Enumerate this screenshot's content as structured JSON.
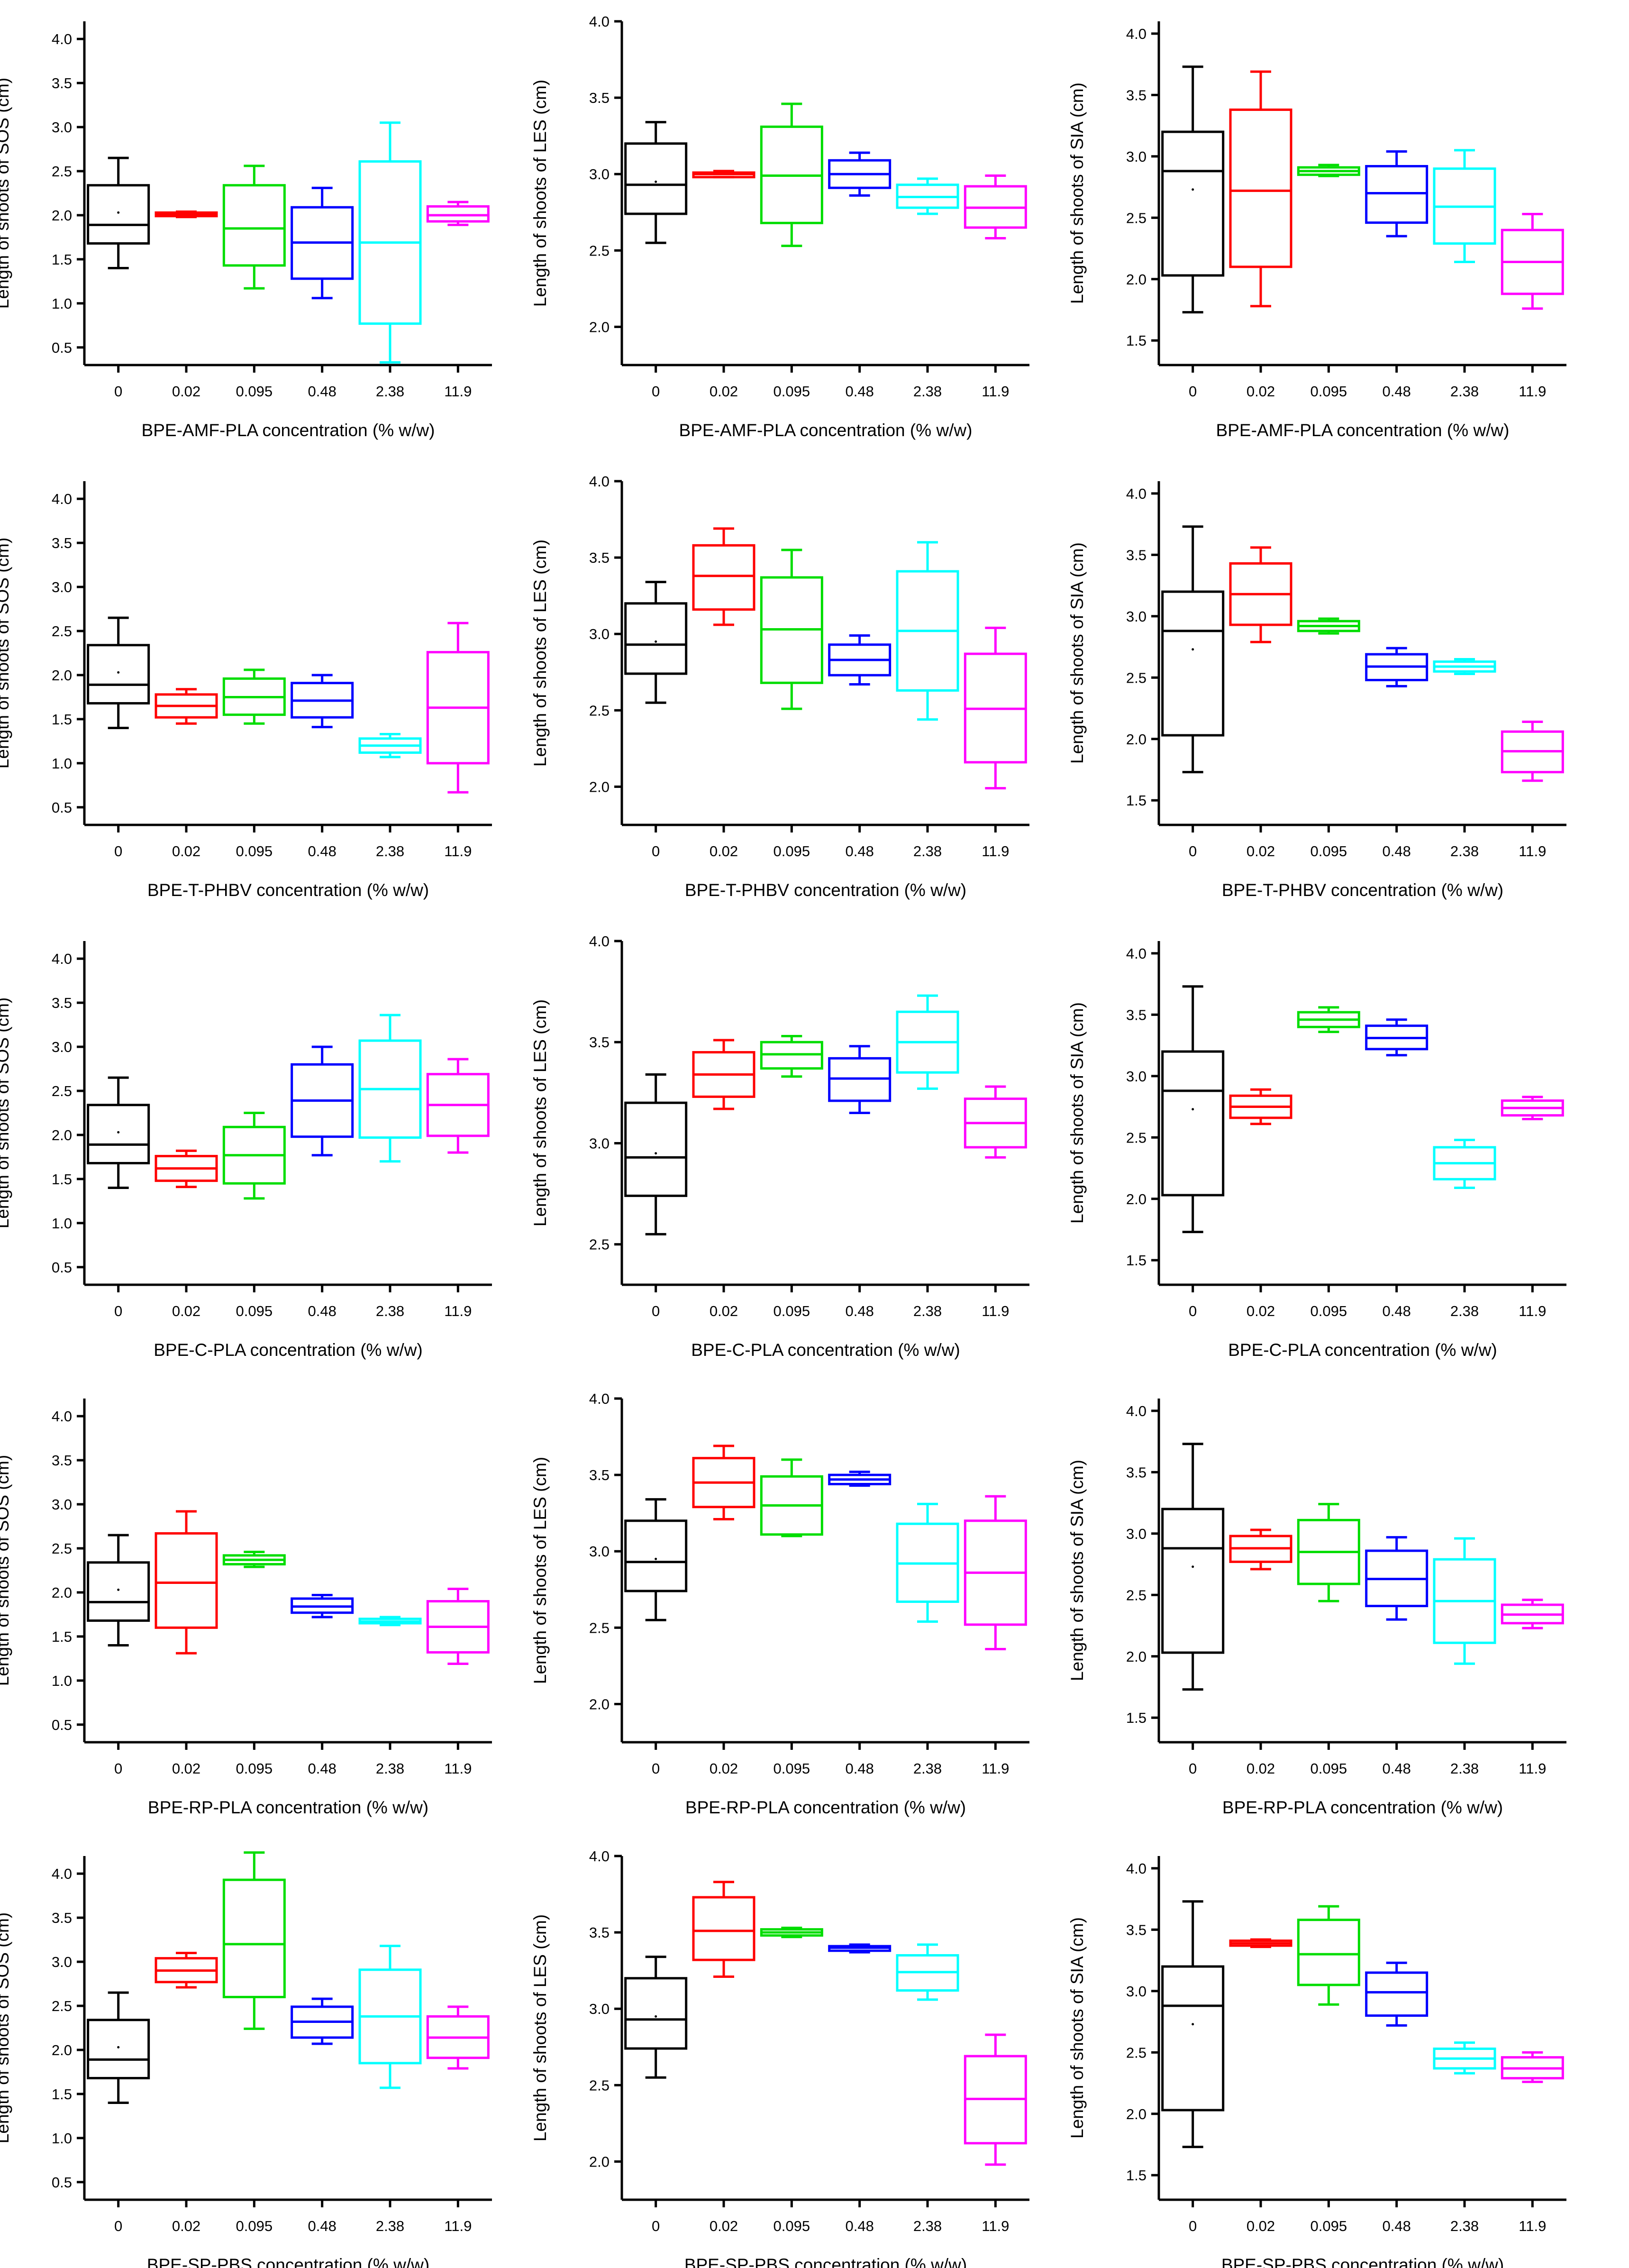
{
  "colors": {
    "axis": "#000000",
    "series": [
      "#000000",
      "#ff0000",
      "#00dd00",
      "#0000ff",
      "#00ffff",
      "#ff00ff"
    ]
  },
  "chart_data": [
    {
      "type": "box",
      "title": "",
      "xlabel": "BPE-AMF-PLA concentration (% w/w)",
      "ylabel": "Length of shoots of SOS (cm)",
      "categories": [
        "0",
        "0.02",
        "0.095",
        "0.48",
        "2.38",
        "11.9"
      ],
      "ylim": [
        0.3,
        4.2
      ],
      "yticks": [
        "0.5",
        "1.0",
        "1.5",
        "2.0",
        "2.5",
        "3.0",
        "3.5",
        "4.0"
      ],
      "boxes": [
        {
          "min": 1.4,
          "q1": 1.68,
          "median": 1.89,
          "q3": 2.34,
          "max": 2.65,
          "mean": 2.03
        },
        {
          "min": 1.98,
          "q1": 1.99,
          "median": 2.01,
          "q3": 2.03,
          "max": 2.04
        },
        {
          "min": 1.17,
          "q1": 1.43,
          "median": 1.85,
          "q3": 2.34,
          "max": 2.56
        },
        {
          "min": 1.06,
          "q1": 1.28,
          "median": 1.69,
          "q3": 2.09,
          "max": 2.31
        },
        {
          "min": 0.33,
          "q1": 0.77,
          "median": 1.69,
          "q3": 2.61,
          "max": 3.05
        },
        {
          "min": 1.89,
          "q1": 1.93,
          "median": 2.0,
          "q3": 2.1,
          "max": 2.15
        }
      ]
    },
    {
      "type": "box",
      "title": "",
      "xlabel": "BPE-AMF-PLA concentration (% w/w)",
      "ylabel": "Length of shoots of LES (cm)",
      "categories": [
        "0",
        "0.02",
        "0.095",
        "0.48",
        "2.38",
        "11.9"
      ],
      "ylim": [
        1.75,
        4.0
      ],
      "yticks": [
        "2.0",
        "2.5",
        "3.0",
        "3.5",
        "4.0"
      ],
      "boxes": [
        {
          "min": 2.55,
          "q1": 2.74,
          "median": 2.93,
          "q3": 3.2,
          "max": 3.34,
          "mean": 2.95
        },
        {
          "min": 2.98,
          "q1": 2.98,
          "median": 3.0,
          "q3": 3.01,
          "max": 3.02
        },
        {
          "min": 2.53,
          "q1": 2.68,
          "median": 2.99,
          "q3": 3.31,
          "max": 3.46
        },
        {
          "min": 2.86,
          "q1": 2.91,
          "median": 3.0,
          "q3": 3.09,
          "max": 3.14
        },
        {
          "min": 2.74,
          "q1": 2.78,
          "median": 2.85,
          "q3": 2.93,
          "max": 2.97
        },
        {
          "min": 2.58,
          "q1": 2.65,
          "median": 2.78,
          "q3": 2.92,
          "max": 2.99
        }
      ]
    },
    {
      "type": "box",
      "title": "",
      "xlabel": "BPE-AMF-PLA concentration (% w/w)",
      "ylabel": "Length of shoots of SIA (cm)",
      "categories": [
        "0",
        "0.02",
        "0.095",
        "0.48",
        "2.38",
        "11.9"
      ],
      "ylim": [
        1.3,
        4.1
      ],
      "yticks": [
        "1.5",
        "2.0",
        "2.5",
        "3.0",
        "3.5",
        "4.0"
      ],
      "boxes": [
        {
          "min": 1.73,
          "q1": 2.03,
          "median": 2.88,
          "q3": 3.2,
          "max": 3.73,
          "mean": 2.73
        },
        {
          "min": 1.78,
          "q1": 2.1,
          "median": 2.72,
          "q3": 3.38,
          "max": 3.69
        },
        {
          "min": 2.84,
          "q1": 2.85,
          "median": 2.88,
          "q3": 2.91,
          "max": 2.93
        },
        {
          "min": 2.35,
          "q1": 2.46,
          "median": 2.7,
          "q3": 2.92,
          "max": 3.04
        },
        {
          "min": 2.14,
          "q1": 2.29,
          "median": 2.59,
          "q3": 2.9,
          "max": 3.05
        },
        {
          "min": 1.76,
          "q1": 1.88,
          "median": 2.14,
          "q3": 2.4,
          "max": 2.53
        }
      ]
    },
    {
      "type": "box",
      "title": "",
      "xlabel": "BPE-T-PHBV concentration (% w/w)",
      "ylabel": "Length of shoots of SOS (cm)",
      "categories": [
        "0",
        "0.02",
        "0.095",
        "0.48",
        "2.38",
        "11.9"
      ],
      "ylim": [
        0.3,
        4.2
      ],
      "yticks": [
        "0.5",
        "1.0",
        "1.5",
        "2.0",
        "2.5",
        "3.0",
        "3.5",
        "4.0"
      ],
      "boxes": [
        {
          "min": 1.4,
          "q1": 1.68,
          "median": 1.89,
          "q3": 2.34,
          "max": 2.65,
          "mean": 2.03
        },
        {
          "min": 1.45,
          "q1": 1.52,
          "median": 1.65,
          "q3": 1.78,
          "max": 1.84
        },
        {
          "min": 1.45,
          "q1": 1.55,
          "median": 1.75,
          "q3": 1.96,
          "max": 2.06
        },
        {
          "min": 1.41,
          "q1": 1.52,
          "median": 1.71,
          "q3": 1.91,
          "max": 2.0
        },
        {
          "min": 1.07,
          "q1": 1.12,
          "median": 1.2,
          "q3": 1.28,
          "max": 1.33
        },
        {
          "min": 0.67,
          "q1": 1.0,
          "median": 1.63,
          "q3": 2.26,
          "max": 2.59
        }
      ]
    },
    {
      "type": "box",
      "title": "",
      "xlabel": "BPE-T-PHBV concentration (% w/w)",
      "ylabel": "Length of shoots of LES (cm)",
      "categories": [
        "0",
        "0.02",
        "0.095",
        "0.48",
        "2.38",
        "11.9"
      ],
      "ylim": [
        1.75,
        4.0
      ],
      "yticks": [
        "2.0",
        "2.5",
        "3.0",
        "3.5",
        "4.0"
      ],
      "boxes": [
        {
          "min": 2.55,
          "q1": 2.74,
          "median": 2.93,
          "q3": 3.2,
          "max": 3.34,
          "mean": 2.95
        },
        {
          "min": 3.06,
          "q1": 3.16,
          "median": 3.38,
          "q3": 3.58,
          "max": 3.69
        },
        {
          "min": 2.51,
          "q1": 2.68,
          "median": 3.03,
          "q3": 3.37,
          "max": 3.55
        },
        {
          "min": 2.67,
          "q1": 2.73,
          "median": 2.83,
          "q3": 2.93,
          "max": 2.99
        },
        {
          "min": 2.44,
          "q1": 2.63,
          "median": 3.02,
          "q3": 3.41,
          "max": 3.6
        },
        {
          "min": 1.99,
          "q1": 2.16,
          "median": 2.51,
          "q3": 2.87,
          "max": 3.04
        }
      ]
    },
    {
      "type": "box",
      "title": "",
      "xlabel": "BPE-T-PHBV concentration (% w/w)",
      "ylabel": "Length of shoots of SIA (cm)",
      "categories": [
        "0",
        "0.02",
        "0.095",
        "0.48",
        "2.38",
        "11.9"
      ],
      "ylim": [
        1.3,
        4.1
      ],
      "yticks": [
        "1.5",
        "2.0",
        "2.5",
        "3.0",
        "3.5",
        "4.0"
      ],
      "boxes": [
        {
          "min": 1.73,
          "q1": 2.03,
          "median": 2.88,
          "q3": 3.2,
          "max": 3.73,
          "mean": 2.73
        },
        {
          "min": 2.79,
          "q1": 2.93,
          "median": 3.18,
          "q3": 3.43,
          "max": 3.56
        },
        {
          "min": 2.86,
          "q1": 2.88,
          "median": 2.92,
          "q3": 2.96,
          "max": 2.98
        },
        {
          "min": 2.43,
          "q1": 2.48,
          "median": 2.59,
          "q3": 2.69,
          "max": 2.74
        },
        {
          "min": 2.53,
          "q1": 2.55,
          "median": 2.59,
          "q3": 2.63,
          "max": 2.65
        },
        {
          "min": 1.66,
          "q1": 1.73,
          "median": 1.9,
          "q3": 2.06,
          "max": 2.14
        }
      ]
    },
    {
      "type": "box",
      "title": "",
      "xlabel": "BPE-C-PLA concentration (% w/w)",
      "ylabel": "Length of shoots of SOS (cm)",
      "categories": [
        "0",
        "0.02",
        "0.095",
        "0.48",
        "2.38",
        "11.9"
      ],
      "ylim": [
        0.3,
        4.2
      ],
      "yticks": [
        "0.5",
        "1.0",
        "1.5",
        "2.0",
        "2.5",
        "3.0",
        "3.5",
        "4.0"
      ],
      "boxes": [
        {
          "min": 1.4,
          "q1": 1.68,
          "median": 1.89,
          "q3": 2.34,
          "max": 2.65,
          "mean": 2.03
        },
        {
          "min": 1.41,
          "q1": 1.48,
          "median": 1.62,
          "q3": 1.76,
          "max": 1.82
        },
        {
          "min": 1.28,
          "q1": 1.45,
          "median": 1.77,
          "q3": 2.09,
          "max": 2.25
        },
        {
          "min": 1.77,
          "q1": 1.98,
          "median": 2.39,
          "q3": 2.8,
          "max": 3.0
        },
        {
          "min": 1.7,
          "q1": 1.97,
          "median": 2.52,
          "q3": 3.07,
          "max": 3.36
        },
        {
          "min": 1.8,
          "q1": 1.99,
          "median": 2.34,
          "q3": 2.69,
          "max": 2.86
        }
      ]
    },
    {
      "type": "box",
      "title": "",
      "xlabel": "BPE-C-PLA concentration (% w/w)",
      "ylabel": "Length of shoots of LES (cm)",
      "categories": [
        "0",
        "0.02",
        "0.095",
        "0.48",
        "2.38",
        "11.9"
      ],
      "ylim": [
        2.3,
        4.0
      ],
      "yticks": [
        "2.5",
        "3.0",
        "3.5",
        "4.0"
      ],
      "boxes": [
        {
          "min": 2.55,
          "q1": 2.74,
          "median": 2.93,
          "q3": 3.2,
          "max": 3.34,
          "mean": 2.95
        },
        {
          "min": 3.17,
          "q1": 3.23,
          "median": 3.34,
          "q3": 3.45,
          "max": 3.51
        },
        {
          "min": 3.33,
          "q1": 3.37,
          "median": 3.44,
          "q3": 3.5,
          "max": 3.53
        },
        {
          "min": 3.15,
          "q1": 3.21,
          "median": 3.32,
          "q3": 3.42,
          "max": 3.48
        },
        {
          "min": 3.27,
          "q1": 3.35,
          "median": 3.5,
          "q3": 3.65,
          "max": 3.73
        },
        {
          "min": 2.93,
          "q1": 2.98,
          "median": 3.1,
          "q3": 3.22,
          "max": 3.28
        }
      ]
    },
    {
      "type": "box",
      "title": "",
      "xlabel": "BPE-C-PLA concentration (% w/w)",
      "ylabel": "Length of shoots of SIA (cm)",
      "categories": [
        "0",
        "0.02",
        "0.095",
        "0.48",
        "2.38",
        "11.9"
      ],
      "ylim": [
        1.3,
        4.1
      ],
      "yticks": [
        "1.5",
        "2.0",
        "2.5",
        "3.0",
        "3.5",
        "4.0"
      ],
      "boxes": [
        {
          "min": 1.73,
          "q1": 2.03,
          "median": 2.88,
          "q3": 3.2,
          "max": 3.73,
          "mean": 2.73
        },
        {
          "min": 2.61,
          "q1": 2.66,
          "median": 2.75,
          "q3": 2.84,
          "max": 2.89
        },
        {
          "min": 3.36,
          "q1": 3.4,
          "median": 3.46,
          "q3": 3.52,
          "max": 3.56
        },
        {
          "min": 3.17,
          "q1": 3.22,
          "median": 3.31,
          "q3": 3.41,
          "max": 3.46
        },
        {
          "min": 2.09,
          "q1": 2.16,
          "median": 2.29,
          "q3": 2.42,
          "max": 2.48
        },
        {
          "min": 2.65,
          "q1": 2.68,
          "median": 2.74,
          "q3": 2.8,
          "max": 2.83
        }
      ]
    },
    {
      "type": "box",
      "title": "",
      "xlabel": "BPE-RP-PLA concentration (% w/w)",
      "ylabel": "Length of shoots of SOS (cm)",
      "categories": [
        "0",
        "0.02",
        "0.095",
        "0.48",
        "2.38",
        "11.9"
      ],
      "ylim": [
        0.3,
        4.2
      ],
      "yticks": [
        "0.5",
        "1.0",
        "1.5",
        "2.0",
        "2.5",
        "3.0",
        "3.5",
        "4.0"
      ],
      "boxes": [
        {
          "min": 1.4,
          "q1": 1.68,
          "median": 1.89,
          "q3": 2.34,
          "max": 2.65,
          "mean": 2.03
        },
        {
          "min": 1.31,
          "q1": 1.6,
          "median": 2.11,
          "q3": 2.67,
          "max": 2.92
        },
        {
          "min": 2.29,
          "q1": 2.32,
          "median": 2.37,
          "q3": 2.42,
          "max": 2.46
        },
        {
          "min": 1.72,
          "q1": 1.77,
          "median": 1.84,
          "q3": 1.93,
          "max": 1.97
        },
        {
          "min": 1.63,
          "q1": 1.65,
          "median": 1.67,
          "q3": 1.7,
          "max": 1.72
        },
        {
          "min": 1.19,
          "q1": 1.32,
          "median": 1.61,
          "q3": 1.9,
          "max": 2.04
        }
      ]
    },
    {
      "type": "box",
      "title": "",
      "xlabel": "BPE-RP-PLA concentration (% w/w)",
      "ylabel": "Length of shoots of LES (cm)",
      "categories": [
        "0",
        "0.02",
        "0.095",
        "0.48",
        "2.38",
        "11.9"
      ],
      "ylim": [
        1.75,
        4.0
      ],
      "yticks": [
        "2.0",
        "2.5",
        "3.0",
        "3.5",
        "4.0"
      ],
      "boxes": [
        {
          "min": 2.55,
          "q1": 2.74,
          "median": 2.93,
          "q3": 3.2,
          "max": 3.34,
          "mean": 2.95
        },
        {
          "min": 3.21,
          "q1": 3.29,
          "median": 3.45,
          "q3": 3.61,
          "max": 3.69
        },
        {
          "min": 3.1,
          "q1": 3.11,
          "median": 3.3,
          "q3": 3.49,
          "max": 3.6
        },
        {
          "min": 3.43,
          "q1": 3.44,
          "median": 3.47,
          "q3": 3.5,
          "max": 3.52
        },
        {
          "min": 2.54,
          "q1": 2.67,
          "median": 2.92,
          "q3": 3.18,
          "max": 3.31
        },
        {
          "min": 2.36,
          "q1": 2.52,
          "median": 2.86,
          "q3": 3.2,
          "max": 3.36
        }
      ]
    },
    {
      "type": "box",
      "title": "",
      "xlabel": "BPE-RP-PLA concentration (% w/w)",
      "ylabel": "Length of shoots of SIA (cm)",
      "categories": [
        "0",
        "0.02",
        "0.095",
        "0.48",
        "2.38",
        "11.9"
      ],
      "ylim": [
        1.3,
        4.1
      ],
      "yticks": [
        "1.5",
        "2.0",
        "2.5",
        "3.0",
        "3.5",
        "4.0"
      ],
      "boxes": [
        {
          "min": 1.73,
          "q1": 2.03,
          "median": 2.88,
          "q3": 3.2,
          "max": 3.73,
          "mean": 2.73
        },
        {
          "min": 2.71,
          "q1": 2.77,
          "median": 2.88,
          "q3": 2.98,
          "max": 3.03
        },
        {
          "min": 2.45,
          "q1": 2.59,
          "median": 2.85,
          "q3": 3.11,
          "max": 3.24
        },
        {
          "min": 2.3,
          "q1": 2.41,
          "median": 2.63,
          "q3": 2.86,
          "max": 2.97
        },
        {
          "min": 1.94,
          "q1": 2.11,
          "median": 2.45,
          "q3": 2.79,
          "max": 2.96
        },
        {
          "min": 2.23,
          "q1": 2.27,
          "median": 2.34,
          "q3": 2.42,
          "max": 2.46
        }
      ]
    },
    {
      "type": "box",
      "title": "",
      "xlabel": "BPE-SP-PBS concentration (% w/w)",
      "ylabel": "Length of shoots of SOS (cm)",
      "categories": [
        "0",
        "0.02",
        "0.095",
        "0.48",
        "2.38",
        "11.9"
      ],
      "ylim": [
        0.3,
        4.2
      ],
      "yticks": [
        "0.5",
        "1.0",
        "1.5",
        "2.0",
        "2.5",
        "3.0",
        "3.5",
        "4.0"
      ],
      "boxes": [
        {
          "min": 1.4,
          "q1": 1.68,
          "median": 1.89,
          "q3": 2.34,
          "max": 2.65,
          "mean": 2.03
        },
        {
          "min": 2.71,
          "q1": 2.77,
          "median": 2.9,
          "q3": 3.04,
          "max": 3.1
        },
        {
          "min": 2.24,
          "q1": 2.6,
          "median": 3.2,
          "q3": 3.93,
          "max": 4.24
        },
        {
          "min": 2.07,
          "q1": 2.14,
          "median": 2.32,
          "q3": 2.49,
          "max": 2.58
        },
        {
          "min": 1.57,
          "q1": 1.85,
          "median": 2.38,
          "q3": 2.91,
          "max": 3.18
        },
        {
          "min": 1.79,
          "q1": 1.91,
          "median": 2.14,
          "q3": 2.38,
          "max": 2.49
        }
      ]
    },
    {
      "type": "box",
      "title": "",
      "xlabel": "BPE-SP-PBS concentration (% w/w)",
      "ylabel": "Length of shoots of LES (cm)",
      "categories": [
        "0",
        "0.02",
        "0.095",
        "0.48",
        "2.38",
        "11.9"
      ],
      "ylim": [
        1.75,
        4.0
      ],
      "yticks": [
        "2.0",
        "2.5",
        "3.0",
        "3.5",
        "4.0"
      ],
      "boxes": [
        {
          "min": 2.55,
          "q1": 2.74,
          "median": 2.93,
          "q3": 3.2,
          "max": 3.34,
          "mean": 2.95
        },
        {
          "min": 3.21,
          "q1": 3.32,
          "median": 3.51,
          "q3": 3.73,
          "max": 3.83
        },
        {
          "min": 3.47,
          "q1": 3.48,
          "median": 3.5,
          "q3": 3.52,
          "max": 3.53
        },
        {
          "min": 3.37,
          "q1": 3.38,
          "median": 3.4,
          "q3": 3.41,
          "max": 3.42
        },
        {
          "min": 3.06,
          "q1": 3.12,
          "median": 3.24,
          "q3": 3.35,
          "max": 3.42
        },
        {
          "min": 1.98,
          "q1": 2.12,
          "median": 2.41,
          "q3": 2.69,
          "max": 2.83
        }
      ]
    },
    {
      "type": "box",
      "title": "",
      "xlabel": "BPE-SP-PBS concentration (% w/w)",
      "ylabel": "Length of shoots of SIA (cm)",
      "categories": [
        "0",
        "0.02",
        "0.095",
        "0.48",
        "2.38",
        "11.9"
      ],
      "ylim": [
        1.3,
        4.1
      ],
      "yticks": [
        "1.5",
        "2.0",
        "2.5",
        "3.0",
        "3.5",
        "4.0"
      ],
      "boxes": [
        {
          "min": 1.73,
          "q1": 2.03,
          "median": 2.88,
          "q3": 3.2,
          "max": 3.73,
          "mean": 2.73
        },
        {
          "min": 3.36,
          "q1": 3.37,
          "median": 3.39,
          "q3": 3.41,
          "max": 3.42
        },
        {
          "min": 2.89,
          "q1": 3.05,
          "median": 3.3,
          "q3": 3.58,
          "max": 3.69
        },
        {
          "min": 2.72,
          "q1": 2.8,
          "median": 2.99,
          "q3": 3.15,
          "max": 3.23
        },
        {
          "min": 2.33,
          "q1": 2.37,
          "median": 2.45,
          "q3": 2.53,
          "max": 2.58
        },
        {
          "min": 2.26,
          "q1": 2.29,
          "median": 2.37,
          "q3": 2.46,
          "max": 2.5
        }
      ]
    }
  ]
}
